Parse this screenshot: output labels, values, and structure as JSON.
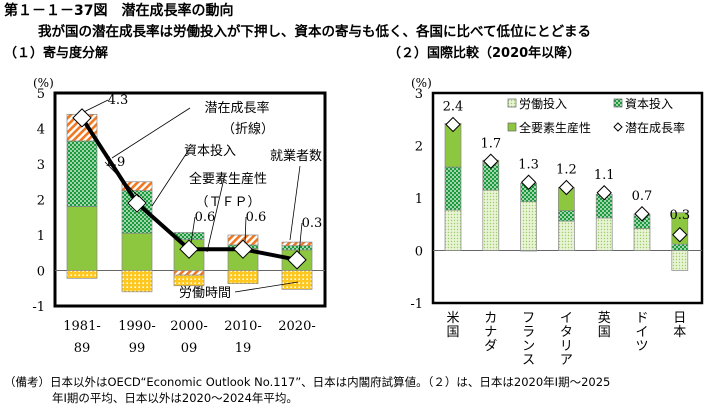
{
  "title": "第１－１－37図　潜在成長率の動向",
  "subtitle": "我が国の潜在成長率は労働投入が下押し、資本の寄与も低く、各国に比べて低位にとどまる",
  "notes": {
    "line1": "（備考）日本以外はOECD“Economic Outlook No.117”、日本は内閣府試算値。（２）は、日本は2020年Ⅰ期～2025",
    "line2": "年Ⅰ期の平均、日本以外は2020～2024年平均。"
  },
  "colors": {
    "tfp": "#8dc63f",
    "capital": "#1a9a3a",
    "employees": "#f07820",
    "hours": "#ffc820",
    "labor": "#cfe8a8",
    "line": "#000000"
  },
  "chart_data": [
    {
      "type": "bar",
      "title": "（１）寄与度分解",
      "ylabel": "(%)",
      "ylim": [
        -1,
        5
      ],
      "yticks": [
        "-1",
        "0",
        "1",
        "2",
        "3",
        "4",
        "5"
      ],
      "categories": [
        [
          "1981-",
          "89"
        ],
        [
          "1990-",
          "99"
        ],
        [
          "2000-",
          "09"
        ],
        [
          "2010-",
          "19"
        ],
        [
          "2020-",
          ""
        ]
      ],
      "series": [
        {
          "name": "全要素生産性（ＴＦＰ）",
          "key": "tfp",
          "values": [
            1.8,
            1.05,
            0.87,
            0.62,
            0.58
          ]
        },
        {
          "name": "資本投入",
          "key": "capital",
          "values": [
            1.85,
            1.2,
            0.2,
            0.1,
            0.12
          ]
        },
        {
          "name": "就業者数",
          "key": "employees",
          "values": [
            0.75,
            0.25,
            -0.13,
            0.28,
            0.1
          ]
        },
        {
          "name": "労働時間",
          "key": "hours",
          "values": [
            -0.22,
            -0.6,
            -0.3,
            -0.37,
            -0.53
          ]
        }
      ],
      "line": {
        "name": "潜在成長率（折線）",
        "values": [
          4.3,
          1.9,
          0.6,
          0.6,
          0.3
        ],
        "labels": [
          "4.3",
          "1.9",
          "0.6",
          "0.6",
          "0.3"
        ]
      },
      "annotations": [
        "潜在成長率",
        "（折線）",
        "資本投入",
        "全要素生産性",
        "（ＴＦＰ）",
        "就業者数",
        "労働時間"
      ]
    },
    {
      "type": "bar",
      "title": "（２）国際比較（2020年以降）",
      "ylabel": "(%)",
      "ylim": [
        -1,
        3
      ],
      "yticks": [
        "-1",
        "0",
        "1",
        "2",
        "3"
      ],
      "categories": [
        "米国",
        "カナダ",
        "フランス",
        "イタリア",
        "英国",
        "ドイツ",
        "日本"
      ],
      "series": [
        {
          "name": "労働投入",
          "key": "labor",
          "values": [
            0.77,
            1.15,
            0.93,
            0.56,
            0.62,
            0.42,
            -0.38
          ]
        },
        {
          "name": "資本投入",
          "key": "capital",
          "values": [
            0.82,
            0.5,
            0.35,
            0.2,
            0.45,
            0.27,
            0.12
          ]
        },
        {
          "name": "全要素生産性",
          "key": "tfp",
          "values": [
            0.83,
            0.07,
            -0.01,
            0.44,
            0.0,
            0.0,
            0.6
          ]
        }
      ],
      "line": {
        "name": "潜在成長率",
        "values": [
          2.4,
          1.7,
          1.3,
          1.2,
          1.1,
          0.7,
          0.3
        ],
        "labels": [
          "2.4",
          "1.7",
          "1.3",
          "1.2",
          "1.1",
          "0.7",
          "0.3"
        ]
      },
      "legend": [
        "労働投入",
        "資本投入",
        "全要素生産性",
        "潜在成長率"
      ],
      "legend_position": "top-right"
    }
  ]
}
